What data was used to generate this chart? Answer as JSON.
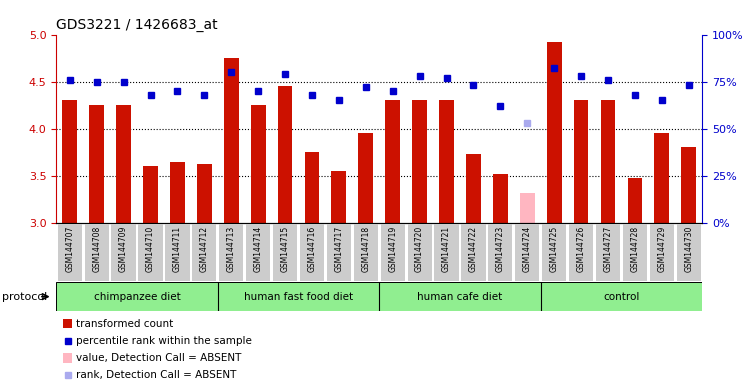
{
  "title": "GDS3221 / 1426683_at",
  "samples": [
    "GSM144707",
    "GSM144708",
    "GSM144709",
    "GSM144710",
    "GSM144711",
    "GSM144712",
    "GSM144713",
    "GSM144714",
    "GSM144715",
    "GSM144716",
    "GSM144717",
    "GSM144718",
    "GSM144719",
    "GSM144720",
    "GSM144721",
    "GSM144722",
    "GSM144723",
    "GSM144724",
    "GSM144725",
    "GSM144726",
    "GSM144727",
    "GSM144728",
    "GSM144729",
    "GSM144730"
  ],
  "bar_values": [
    4.3,
    4.25,
    4.25,
    3.6,
    3.65,
    3.62,
    4.75,
    4.25,
    4.45,
    3.75,
    3.55,
    3.95,
    4.3,
    4.3,
    4.3,
    3.73,
    3.52,
    3.32,
    4.92,
    4.3,
    4.3,
    3.48,
    3.95,
    3.8
  ],
  "dot_values": [
    76,
    75,
    75,
    68,
    70,
    68,
    80,
    70,
    79,
    68,
    65,
    72,
    70,
    78,
    77,
    73,
    62,
    53,
    82,
    78,
    76,
    68,
    65,
    73
  ],
  "bar_absent": [
    false,
    false,
    false,
    false,
    false,
    false,
    false,
    false,
    false,
    false,
    false,
    false,
    false,
    false,
    false,
    false,
    false,
    true,
    false,
    false,
    false,
    false,
    false,
    false
  ],
  "dot_absent": [
    false,
    false,
    false,
    false,
    false,
    false,
    false,
    false,
    false,
    false,
    false,
    false,
    false,
    false,
    false,
    false,
    false,
    true,
    false,
    false,
    false,
    false,
    false,
    false
  ],
  "group_ranges": [
    [
      0,
      5
    ],
    [
      6,
      11
    ],
    [
      12,
      17
    ],
    [
      18,
      23
    ]
  ],
  "group_labels": [
    "chimpanzee diet",
    "human fast food diet",
    "human cafe diet",
    "control"
  ],
  "group_color": "#90EE90",
  "ylim_left": [
    3.0,
    5.0
  ],
  "ylim_right": [
    0,
    100
  ],
  "yticks_left": [
    3.0,
    3.5,
    4.0,
    4.5,
    5.0
  ],
  "yticks_right": [
    0,
    25,
    50,
    75,
    100
  ],
  "ytick_labels_right": [
    "0%",
    "25%",
    "50%",
    "75%",
    "100%"
  ],
  "bar_color": "#CC1100",
  "bar_absent_color": "#FFB6C1",
  "dot_color": "#0000CC",
  "dot_absent_color": "#AAAAEE",
  "left_tick_color": "#CC0000",
  "right_tick_color": "#0000CC",
  "protocol_label": "protocol",
  "legend_items": [
    {
      "type": "rect",
      "color": "#CC1100",
      "label": "transformed count"
    },
    {
      "type": "square",
      "color": "#0000CC",
      "label": "percentile rank within the sample"
    },
    {
      "type": "rect",
      "color": "#FFB6C1",
      "label": "value, Detection Call = ABSENT"
    },
    {
      "type": "square",
      "color": "#AAAAEE",
      "label": "rank, Detection Call = ABSENT"
    }
  ]
}
